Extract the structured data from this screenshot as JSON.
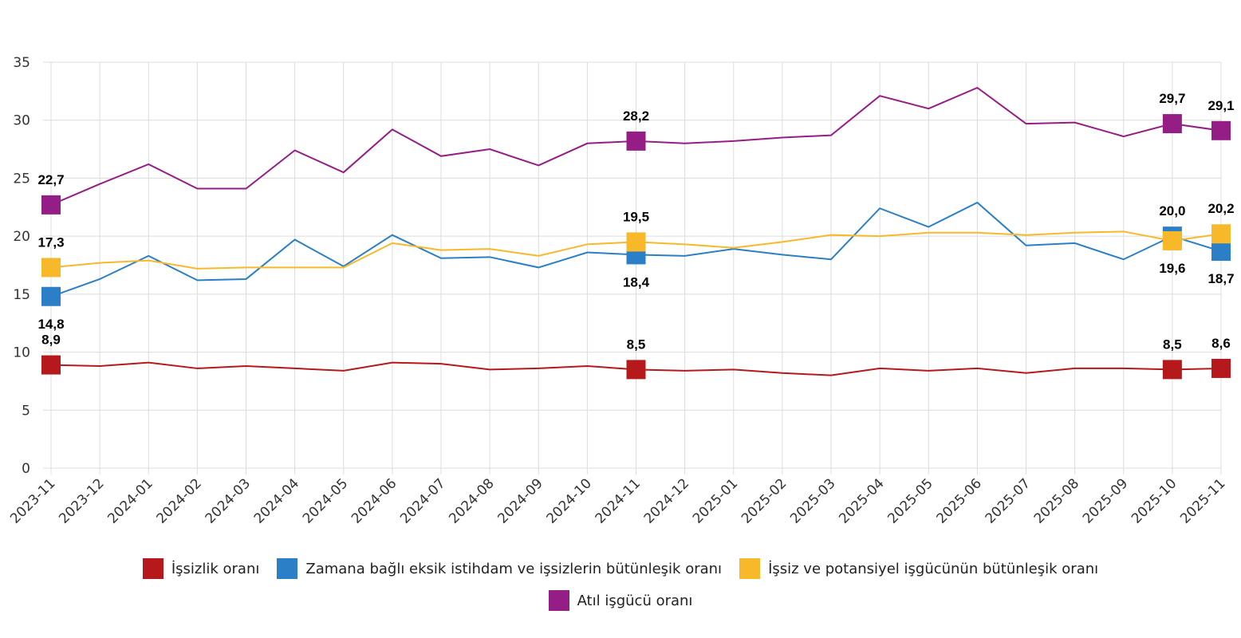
{
  "chart_data": {
    "type": "line",
    "categories": [
      "2023-11",
      "2023-12",
      "2024-01",
      "2024-02",
      "2024-03",
      "2024-04",
      "2024-05",
      "2024-06",
      "2024-07",
      "2024-08",
      "2024-09",
      "2024-10",
      "2024-11",
      "2024-12",
      "2025-01",
      "2025-02",
      "2025-03",
      "2025-04",
      "2025-05",
      "2025-06",
      "2025-07",
      "2025-08",
      "2025-09",
      "2025-10",
      "2025-11"
    ],
    "ylim": [
      0,
      35
    ],
    "yticks": [
      0,
      5,
      10,
      15,
      20,
      25,
      30,
      35
    ],
    "grid": true,
    "series": [
      {
        "name": "İşsizlik oranı",
        "color": "#b5191b",
        "values": [
          8.9,
          8.8,
          9.1,
          8.6,
          8.8,
          8.6,
          8.4,
          9.1,
          9.0,
          8.5,
          8.6,
          8.8,
          8.5,
          8.4,
          8.5,
          8.2,
          8.0,
          8.6,
          8.4,
          8.6,
          8.2,
          8.6,
          8.6,
          8.5,
          8.6
        ],
        "value_labels": [
          "8,9",
          null,
          null,
          null,
          null,
          null,
          null,
          null,
          null,
          null,
          null,
          null,
          "8,5",
          null,
          null,
          null,
          null,
          null,
          null,
          null,
          null,
          null,
          null,
          "8,5",
          "8,6"
        ]
      },
      {
        "name": "Zamana bağlı eksik istihdam ve işsizlerin bütünleşik oranı",
        "color": "#2a7fc6",
        "values": [
          14.8,
          16.3,
          18.3,
          16.2,
          16.3,
          19.7,
          17.4,
          20.1,
          18.1,
          18.2,
          17.3,
          18.6,
          18.4,
          18.3,
          18.9,
          18.4,
          18.0,
          22.4,
          20.8,
          22.9,
          19.2,
          19.4,
          18.0,
          20.0,
          18.7
        ],
        "value_labels": [
          "14,8",
          null,
          null,
          null,
          null,
          null,
          null,
          null,
          null,
          null,
          null,
          null,
          "18,4",
          null,
          null,
          null,
          null,
          null,
          null,
          null,
          null,
          null,
          null,
          "20,0",
          "18,7"
        ]
      },
      {
        "name": "İşsiz ve potansiyel işgücünün bütünleşik oranı",
        "color": "#f7b92a",
        "values": [
          17.3,
          17.7,
          17.9,
          17.2,
          17.3,
          17.3,
          17.3,
          19.4,
          18.8,
          18.9,
          18.3,
          19.3,
          19.5,
          19.3,
          19.0,
          19.5,
          20.1,
          20.0,
          20.3,
          20.3,
          20.1,
          20.3,
          20.4,
          19.6,
          20.2
        ],
        "value_labels": [
          "17,3",
          null,
          null,
          null,
          null,
          null,
          null,
          null,
          null,
          null,
          null,
          null,
          "19,5",
          null,
          null,
          null,
          null,
          null,
          null,
          null,
          null,
          null,
          null,
          "19,6",
          "20,2"
        ]
      },
      {
        "name": "Atıl işgücü oranı",
        "color": "#951d86",
        "values": [
          22.7,
          24.5,
          26.2,
          24.1,
          24.1,
          27.4,
          25.5,
          29.2,
          26.9,
          27.5,
          26.1,
          28.0,
          28.2,
          28.0,
          28.2,
          28.5,
          28.7,
          32.1,
          31.0,
          32.8,
          29.7,
          29.8,
          28.6,
          29.7,
          29.1
        ],
        "value_labels": [
          "22,7",
          null,
          null,
          null,
          null,
          null,
          null,
          null,
          null,
          null,
          null,
          null,
          "28,2",
          null,
          null,
          null,
          null,
          null,
          null,
          null,
          null,
          null,
          null,
          "29,7",
          "29,1"
        ]
      }
    ]
  }
}
